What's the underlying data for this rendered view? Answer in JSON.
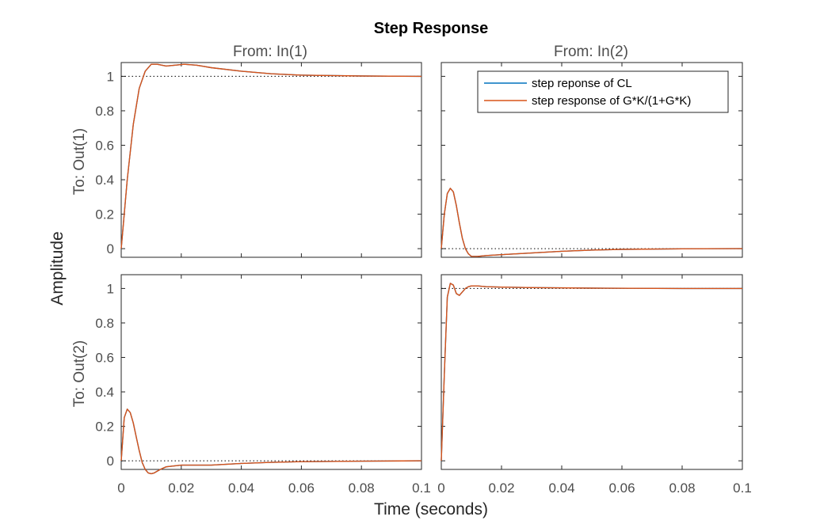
{
  "chart_data": {
    "type": "line",
    "title": "Step Response",
    "xlabel": "Time (seconds)",
    "ylabel": "Amplitude",
    "column_titles": [
      "From: In(1)",
      "From: In(2)"
    ],
    "row_titles": [
      "To: Out(1)",
      "To: Out(2)"
    ],
    "xlim": [
      0,
      0.1
    ],
    "ylim": [
      -0.05,
      1.08
    ],
    "x_tick_labels": [
      "0",
      "0.02",
      "0.04",
      "0.06",
      "0.08",
      "0.1"
    ],
    "y_tick_labels": [
      "0",
      "0.2",
      "0.4",
      "0.6",
      "0.8",
      "1"
    ],
    "colors": {
      "cl": "#0072BD",
      "gk": "#D95319",
      "axis": "#262626",
      "text": "#4d4d4d"
    },
    "legend": {
      "location": "top-right",
      "entries": [
        "step reponse of CL",
        "step response of G*K/(1+G*K)"
      ]
    },
    "steady_state": [
      [
        1,
        0
      ],
      [
        0,
        1
      ]
    ],
    "series": [
      {
        "name": "step reponse of CL",
        "panels": [
          {
            "row": 0,
            "col": 0,
            "x": [
              0,
              0.002,
              0.004,
              0.006,
              0.008,
              0.01,
              0.012,
              0.015,
              0.018,
              0.021,
              0.025,
              0.03,
              0.04,
              0.05,
              0.06,
              0.08,
              0.1
            ],
            "y": [
              0,
              0.4,
              0.72,
              0.93,
              1.03,
              1.07,
              1.07,
              1.06,
              1.065,
              1.07,
              1.065,
              1.05,
              1.03,
              1.015,
              1.007,
              1.002,
              1.0
            ]
          },
          {
            "row": 0,
            "col": 1,
            "x": [
              0,
              0.001,
              0.002,
              0.003,
              0.004,
              0.005,
              0.006,
              0.007,
              0.008,
              0.009,
              0.01,
              0.012,
              0.015,
              0.02,
              0.03,
              0.04,
              0.05,
              0.06,
              0.08,
              0.1
            ],
            "y": [
              0,
              0.2,
              0.32,
              0.35,
              0.33,
              0.25,
              0.15,
              0.06,
              0.0,
              -0.03,
              -0.045,
              -0.045,
              -0.04,
              -0.035,
              -0.025,
              -0.015,
              -0.008,
              -0.004,
              -0.001,
              0
            ]
          },
          {
            "row": 1,
            "col": 0,
            "x": [
              0,
              0.001,
              0.002,
              0.003,
              0.004,
              0.005,
              0.006,
              0.007,
              0.008,
              0.009,
              0.01,
              0.011,
              0.013,
              0.015,
              0.02,
              0.03,
              0.04,
              0.05,
              0.06,
              0.08,
              0.1
            ],
            "y": [
              0,
              0.25,
              0.3,
              0.28,
              0.22,
              0.14,
              0.06,
              -0.01,
              -0.05,
              -0.07,
              -0.075,
              -0.07,
              -0.05,
              -0.035,
              -0.025,
              -0.025,
              -0.015,
              -0.009,
              -0.005,
              -0.002,
              0
            ]
          },
          {
            "row": 1,
            "col": 1,
            "x": [
              0,
              0.001,
              0.002,
              0.003,
              0.004,
              0.005,
              0.006,
              0.007,
              0.008,
              0.009,
              0.01,
              0.012,
              0.015,
              0.02,
              0.03,
              0.05,
              0.08,
              0.1
            ],
            "y": [
              0,
              0.5,
              0.95,
              1.03,
              1.02,
              0.97,
              0.96,
              0.98,
              1.0,
              1.01,
              1.015,
              1.015,
              1.01,
              1.008,
              1.005,
              1.002,
              1.0,
              1.0
            ]
          }
        ]
      },
      {
        "name": "step response of G*K/(1+G*K)",
        "panels": [
          {
            "row": 0,
            "col": 0,
            "x": [
              0,
              0.002,
              0.004,
              0.006,
              0.008,
              0.01,
              0.012,
              0.015,
              0.018,
              0.021,
              0.025,
              0.03,
              0.04,
              0.05,
              0.06,
              0.08,
              0.1
            ],
            "y": [
              0,
              0.4,
              0.72,
              0.93,
              1.03,
              1.07,
              1.07,
              1.06,
              1.065,
              1.07,
              1.065,
              1.05,
              1.03,
              1.015,
              1.007,
              1.002,
              1.0
            ]
          },
          {
            "row": 0,
            "col": 1,
            "x": [
              0,
              0.001,
              0.002,
              0.003,
              0.004,
              0.005,
              0.006,
              0.007,
              0.008,
              0.009,
              0.01,
              0.012,
              0.015,
              0.02,
              0.03,
              0.04,
              0.05,
              0.06,
              0.08,
              0.1
            ],
            "y": [
              0,
              0.2,
              0.32,
              0.35,
              0.33,
              0.25,
              0.15,
              0.06,
              0.0,
              -0.03,
              -0.045,
              -0.045,
              -0.04,
              -0.035,
              -0.025,
              -0.015,
              -0.008,
              -0.004,
              -0.001,
              0
            ]
          },
          {
            "row": 1,
            "col": 0,
            "x": [
              0,
              0.001,
              0.002,
              0.003,
              0.004,
              0.005,
              0.006,
              0.007,
              0.008,
              0.009,
              0.01,
              0.011,
              0.013,
              0.015,
              0.02,
              0.03,
              0.04,
              0.05,
              0.06,
              0.08,
              0.1
            ],
            "y": [
              0,
              0.25,
              0.3,
              0.28,
              0.22,
              0.14,
              0.06,
              -0.01,
              -0.05,
              -0.07,
              -0.075,
              -0.07,
              -0.05,
              -0.035,
              -0.025,
              -0.025,
              -0.015,
              -0.009,
              -0.005,
              -0.002,
              0
            ]
          },
          {
            "row": 1,
            "col": 1,
            "x": [
              0,
              0.001,
              0.002,
              0.003,
              0.004,
              0.005,
              0.006,
              0.007,
              0.008,
              0.009,
              0.01,
              0.012,
              0.015,
              0.02,
              0.03,
              0.05,
              0.08,
              0.1
            ],
            "y": [
              0,
              0.5,
              0.95,
              1.03,
              1.02,
              0.97,
              0.96,
              0.98,
              1.0,
              1.01,
              1.015,
              1.015,
              1.01,
              1.008,
              1.005,
              1.002,
              1.0,
              1.0
            ]
          }
        ]
      }
    ]
  }
}
